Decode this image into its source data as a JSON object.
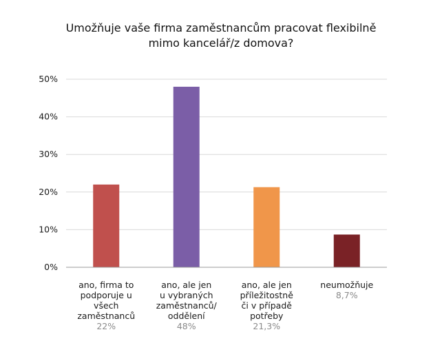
{
  "chart_data": {
    "type": "bar",
    "title_lines": [
      "Umožňuje vaše firma zaměstnancům pracovat flexibilně",
      "mimo kancelář/z domova?"
    ],
    "ylim": [
      0,
      50
    ],
    "yticks": [
      0,
      10,
      20,
      30,
      40,
      50
    ],
    "ytick_labels": [
      "0%",
      "10%",
      "20%",
      "30%",
      "40%",
      "50%"
    ],
    "grid": true,
    "categories": [
      {
        "label_lines": [
          "ano, firma to",
          "podporuje u všech",
          "zaměstnanců"
        ],
        "value": 22,
        "value_label": "22%",
        "color": "#c0504d"
      },
      {
        "label_lines": [
          "ano, ale jen",
          "u vybraných",
          "zaměstnanců/",
          "oddělení"
        ],
        "value": 48,
        "value_label": "48%",
        "color": "#7b5ea7"
      },
      {
        "label_lines": [
          "ano, ale jen",
          "příležitostně",
          "či v případě",
          "potřeby"
        ],
        "value": 21.3,
        "value_label": "21,3%",
        "color": "#f0964a"
      },
      {
        "label_lines": [
          "neumožňuje"
        ],
        "value": 8.7,
        "value_label": "8,7%",
        "color": "#7a2226"
      }
    ]
  }
}
